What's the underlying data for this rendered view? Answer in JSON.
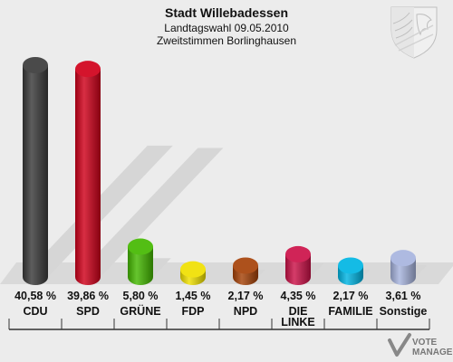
{
  "header": {
    "title": "Stadt Willebadessen",
    "subtitle_1": "Landtagswahl 09.05.2010",
    "subtitle_2": "Zweitstimmen Borlinghausen"
  },
  "logo": {
    "name": "nrw-coat-of-arms"
  },
  "brand": {
    "line1": "VOTE",
    "line2": "MANAGER"
  },
  "colors": {
    "background": "#ececec",
    "shadow": "#d6d6d6",
    "baseline": "#333333"
  },
  "chart_data": {
    "type": "bar",
    "title": "Stadt Willebadessen",
    "subtitle": [
      "Landtagswahl 09.05.2010",
      "Zweitstimmen Borlinghausen"
    ],
    "xlabel": "",
    "ylabel": "",
    "grid": false,
    "legend": "none",
    "ylim": [
      0,
      40.58
    ],
    "categories": [
      [
        "CDU"
      ],
      [
        "SPD"
      ],
      [
        "GRÜNE"
      ],
      [
        "FDP"
      ],
      [
        "NPD"
      ],
      [
        "DIE",
        "LINKE"
      ],
      [
        "FAMILIE"
      ],
      [
        "Sonstige"
      ]
    ],
    "values": [
      40.58,
      39.86,
      5.8,
      1.45,
      2.17,
      4.35,
      2.17,
      3.61
    ],
    "labels": [
      "40,58 %",
      "39,86 %",
      "5,80 %",
      "1,45 %",
      "2,17 %",
      "4,35 %",
      "2,17 %",
      "3,61 %"
    ],
    "colors": [
      "#3a3a3a",
      "#d0001a",
      "#44b800",
      "#f0e000",
      "#a64208",
      "#cc1148",
      "#00b5e3",
      "#a7b4de"
    ]
  }
}
